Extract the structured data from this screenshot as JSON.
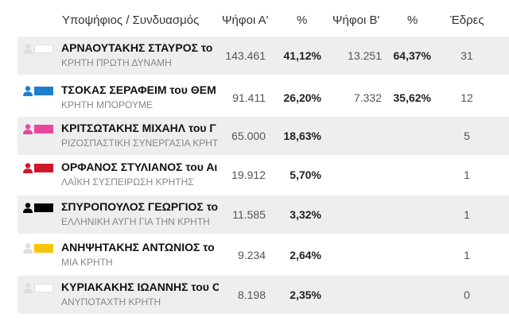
{
  "header": {
    "candidate": "Υποψήφιος / Συνδυασμός",
    "votes_a": "Ψήφοι Α'",
    "pct_a": "%",
    "votes_b": "Ψήφοι Β'",
    "pct_b": "%",
    "seats": "Έδρες"
  },
  "rows": [
    {
      "name": "ΑΡΝΑΟΥΤΑΚΗΣ ΣΤΑΥΡΟΣ το",
      "party": "ΚΡΗΤΗ ΠΡΩΤΗ ΔΥΝΑΜΗ",
      "votes_a": "143.461",
      "pct_a": "41,12%",
      "votes_b": "13.251",
      "pct_b": "64,37%",
      "seats": "31",
      "color": "#ffffff",
      "person_color": "#dddddd",
      "shaded": true
    },
    {
      "name": "ΤΣΟΚΑΣ ΣΕΡΑΦΕΙΜ του ΘΕΜ",
      "party": "ΚΡΗΤΗ ΜΠΟΡΟΥΜΕ",
      "votes_a": "91.411",
      "pct_a": "26,20%",
      "votes_b": "7.332",
      "pct_b": "35,62%",
      "seats": "12",
      "color": "#1e7fcf",
      "person_color": "#1e7fcf",
      "shaded": false
    },
    {
      "name": "ΚΡΙΤΣΩΤΑΚΗΣ ΜΙΧΑΗΛ του Γ",
      "party": "ΡΙΖΟΣΠΑΣΤΙΚΗ ΣΥΝΕΡΓΑΣΙΑ ΚΡΗΤ",
      "votes_a": "65.000",
      "pct_a": "18,63%",
      "votes_b": "",
      "pct_b": "",
      "seats": "5",
      "color": "#e6479b",
      "person_color": "#e6479b",
      "shaded": true
    },
    {
      "name": "ΟΡΦΑΝΟΣ ΣΤΥΛΙΑΝΟΣ του Αι",
      "party": "ΛΑΪΚΗ ΣΥΣΠΕΙΡΩΣΗ ΚΡΗΤΗΣ",
      "votes_a": "19.912",
      "pct_a": "5,70%",
      "votes_b": "",
      "pct_b": "",
      "seats": "1",
      "color": "#d0182a",
      "person_color": "#d0182a",
      "shaded": false
    },
    {
      "name": "ΣΠΥΡΟΠΟΥΛΟΣ ΓΕΩΡΓΙΟΣ το",
      "party": "ΕΛΛΗΝΙΚΗ ΑΥΓΗ ΓΙΑ ΤΗΝ ΚΡΗΤΗ",
      "votes_a": "11.585",
      "pct_a": "3,32%",
      "votes_b": "",
      "pct_b": "",
      "seats": "1",
      "color": "#000000",
      "person_color": "#000000",
      "shaded": true
    },
    {
      "name": "ΑΝΗΨΗΤΑΚΗΣ ΑΝΤΩΝΙΟΣ το",
      "party": "ΜΙΑ ΚΡΗΤΗ",
      "votes_a": "9.234",
      "pct_a": "2,64%",
      "votes_b": "",
      "pct_b": "",
      "seats": "1",
      "color": "#f7c40b",
      "person_color": "#dddddd",
      "shaded": false
    },
    {
      "name": "ΚΥΡΙΑΚΑΚΗΣ ΙΩΑΝΝΗΣ του Ο",
      "party": "ΑΝΥΠΟΤΑΧΤΗ ΚΡΗΤΗ",
      "votes_a": "8.198",
      "pct_a": "2,35%",
      "votes_b": "",
      "pct_b": "",
      "seats": "0",
      "color": "#ffffff",
      "person_color": "#dddddd",
      "shaded": true
    }
  ]
}
